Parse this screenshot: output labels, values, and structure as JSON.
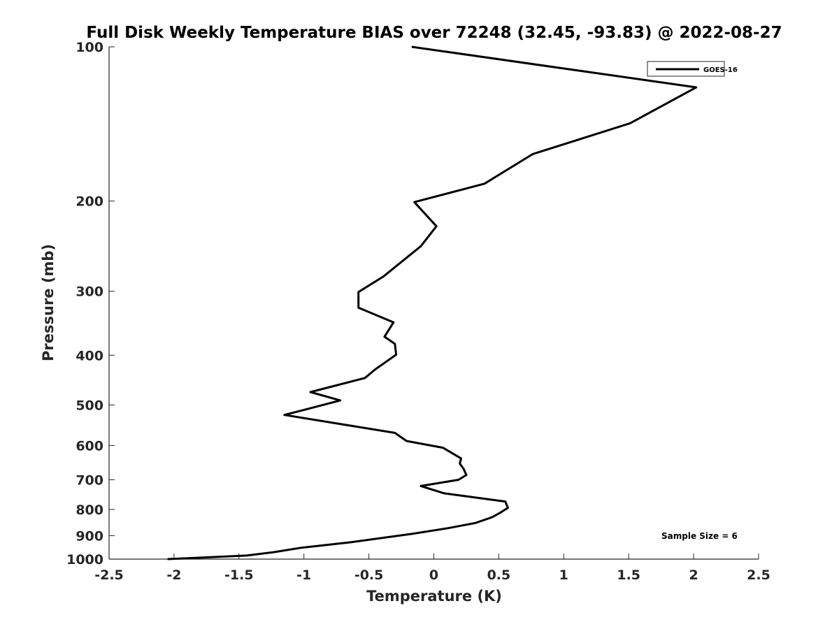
{
  "chart_data": {
    "type": "line",
    "title": "Full Disk Weekly Temperature BIAS over 72248 (32.45, -93.83) @ 2022-08-27",
    "xlabel": "Temperature (K)",
    "ylabel": "Pressure (mb)",
    "xlim": [
      -2.5,
      2.5
    ],
    "ylim": [
      100,
      1000
    ],
    "y_scale": "log",
    "y_reversed": true,
    "grid": false,
    "legend_position": "top-right",
    "x_ticks": [
      "-2.5",
      "-2",
      "-1.5",
      "-1",
      "-0.5",
      "0",
      "0.5",
      "1",
      "1.5",
      "2",
      "2.5"
    ],
    "x_tick_values": [
      -2.5,
      -2,
      -1.5,
      -1,
      -0.5,
      0,
      0.5,
      1,
      1.5,
      2,
      2.5
    ],
    "y_ticks": [
      "100",
      "200",
      "300",
      "400",
      "500",
      "600",
      "700",
      "800",
      "900",
      "1000"
    ],
    "y_tick_values": [
      100,
      200,
      300,
      400,
      500,
      600,
      700,
      800,
      900,
      1000
    ],
    "series": [
      {
        "name": "GOES-16",
        "color": "#000000",
        "points": [
          [
            -0.17,
            100
          ],
          [
            2.02,
            120
          ],
          [
            1.51,
            141
          ],
          [
            0.76,
            162
          ],
          [
            0.39,
            185
          ],
          [
            -0.15,
            201
          ],
          [
            0.02,
            224
          ],
          [
            -0.1,
            245
          ],
          [
            -0.39,
            281
          ],
          [
            -0.58,
            301
          ],
          [
            -0.58,
            323
          ],
          [
            -0.31,
            345
          ],
          [
            -0.38,
            368
          ],
          [
            -0.3,
            380
          ],
          [
            -0.29,
            399
          ],
          [
            -0.45,
            426
          ],
          [
            -0.53,
            443
          ],
          [
            -0.95,
            472
          ],
          [
            -0.72,
            490
          ],
          [
            -0.98,
            510
          ],
          [
            -1.15,
            523
          ],
          [
            -0.3,
            567
          ],
          [
            -0.21,
            588
          ],
          [
            0.07,
            606
          ],
          [
            0.21,
            636
          ],
          [
            0.2,
            651
          ],
          [
            0.23,
            667
          ],
          [
            0.25,
            685
          ],
          [
            0.19,
            700
          ],
          [
            -0.1,
            720
          ],
          [
            0.08,
            744
          ],
          [
            0.55,
            772
          ],
          [
            0.57,
            794
          ],
          [
            0.51,
            812
          ],
          [
            0.45,
            828
          ],
          [
            0.32,
            850
          ],
          [
            0.11,
            870
          ],
          [
            -0.16,
            892
          ],
          [
            -0.64,
            927
          ],
          [
            -1.02,
            950
          ],
          [
            -1.23,
            969
          ],
          [
            -1.44,
            984
          ],
          [
            -2.05,
            1000
          ]
        ]
      }
    ],
    "legend": [
      "GOES-16"
    ],
    "annotations": [
      "Sample Size = 6"
    ]
  }
}
